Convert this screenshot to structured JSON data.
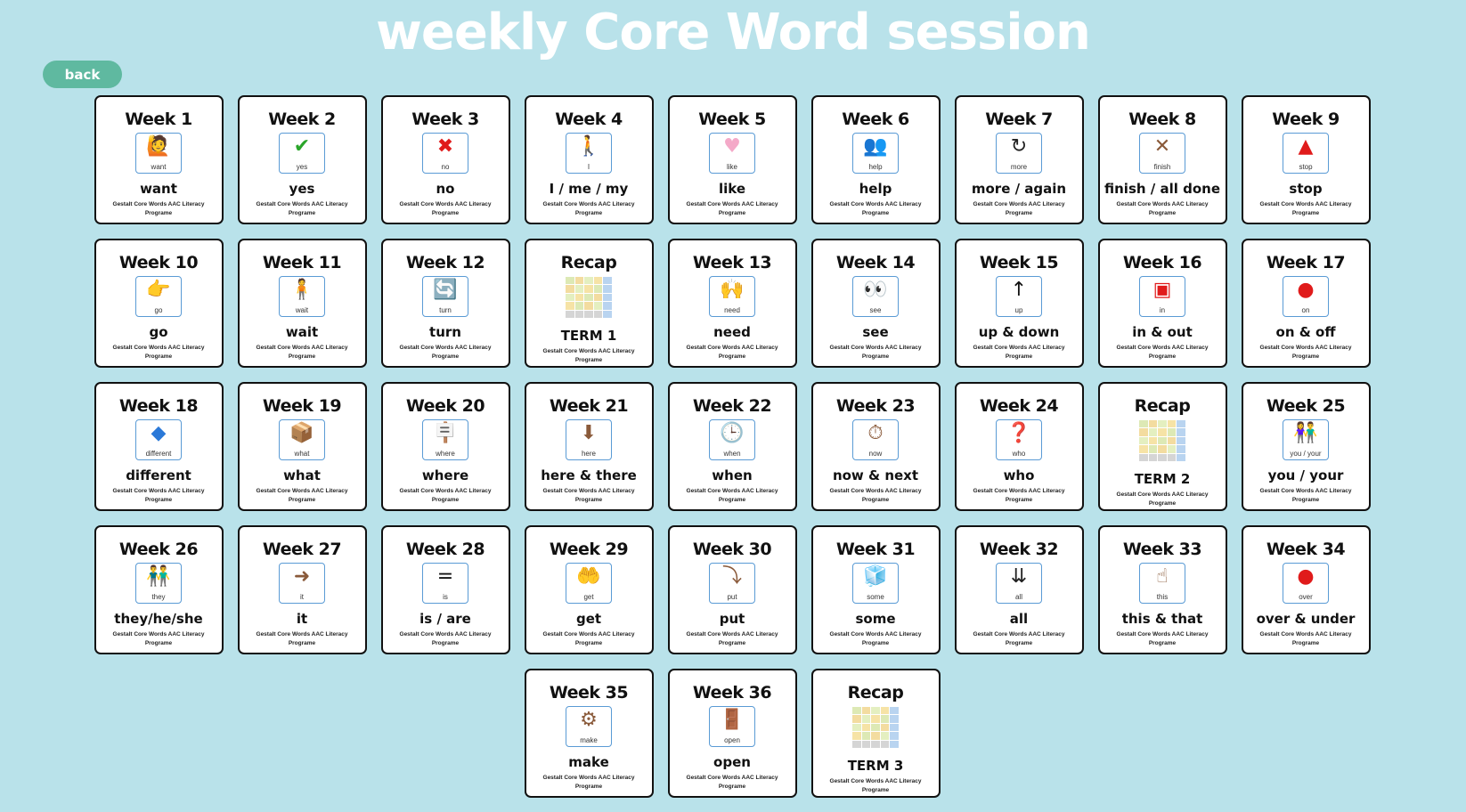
{
  "page": {
    "title": "weekly Core Word session",
    "back_label": "back"
  },
  "colors": {
    "background": "#b9e2ea",
    "back_button": "#5fb9a0",
    "symbol_border": "#5a9bd5"
  },
  "subtitle": "Gestalt Core Words AAC Literacy Programe",
  "rows": [
    [
      {
        "head": "Week 1",
        "symbol": "want",
        "icon": "want-icon",
        "glyph": "🙋",
        "word": "want"
      },
      {
        "head": "Week 2",
        "symbol": "yes",
        "icon": "check-icon",
        "glyph": "✔",
        "word": "yes"
      },
      {
        "head": "Week 3",
        "symbol": "no",
        "icon": "cross-icon",
        "glyph": "✖",
        "word": "no"
      },
      {
        "head": "Week 4",
        "symbol": "I",
        "icon": "person-icon",
        "glyph": "🚶",
        "word": "I / me / my"
      },
      {
        "head": "Week 5",
        "symbol": "like",
        "icon": "heart-icon",
        "glyph": "♥",
        "word": "like"
      },
      {
        "head": "Week 6",
        "symbol": "help",
        "icon": "help-icon",
        "glyph": "👥",
        "word": "help"
      },
      {
        "head": "Week 7",
        "symbol": "more",
        "icon": "more-icon",
        "glyph": "↻",
        "word": "more / again"
      },
      {
        "head": "Week 8",
        "symbol": "finish",
        "icon": "finish-icon",
        "glyph": "✕",
        "word": "finish / all done"
      },
      {
        "head": "Week 9",
        "symbol": "stop",
        "icon": "stop-icon",
        "glyph": "▲",
        "word": "stop"
      }
    ],
    [
      {
        "head": "Week 10",
        "symbol": "go",
        "icon": "pointing-hand-icon",
        "glyph": "👉",
        "word": "go"
      },
      {
        "head": "Week 11",
        "symbol": "wait",
        "icon": "wait-icon",
        "glyph": "🧍",
        "word": "wait"
      },
      {
        "head": "Week 12",
        "symbol": "turn",
        "icon": "turn-icon",
        "glyph": "🔄",
        "word": "turn"
      },
      {
        "head": "Recap",
        "recap": true,
        "word": "TERM 1"
      },
      {
        "head": "Week 13",
        "symbol": "need",
        "icon": "need-icon",
        "glyph": "🙌",
        "word": "need"
      },
      {
        "head": "Week 14",
        "symbol": "see",
        "icon": "eyes-icon",
        "glyph": "👀",
        "word": "see"
      },
      {
        "head": "Week 15",
        "symbol": "up",
        "icon": "arrow-up-icon",
        "glyph": "↑",
        "word": "up & down"
      },
      {
        "head": "Week 16",
        "symbol": "in",
        "icon": "in-icon",
        "glyph": "▣",
        "word": "in & out"
      },
      {
        "head": "Week 17",
        "symbol": "on",
        "icon": "on-icon",
        "glyph": "●",
        "word": "on & off"
      }
    ],
    [
      {
        "head": "Week 18",
        "symbol": "different",
        "icon": "different-icon",
        "glyph": "◆",
        "word": "different"
      },
      {
        "head": "Week 19",
        "symbol": "what",
        "icon": "box-question-icon",
        "glyph": "📦",
        "word": "what"
      },
      {
        "head": "Week 20",
        "symbol": "where",
        "icon": "signpost-question-icon",
        "glyph": "🪧",
        "word": "where"
      },
      {
        "head": "Week 21",
        "symbol": "here",
        "icon": "here-icon",
        "glyph": "⬇",
        "word": "here & there"
      },
      {
        "head": "Week 22",
        "symbol": "when",
        "icon": "clock-question-icon",
        "glyph": "🕒",
        "word": "when"
      },
      {
        "head": "Week 23",
        "symbol": "now",
        "icon": "stopwatch-icon",
        "glyph": "⏱",
        "word": "now & next"
      },
      {
        "head": "Week 24",
        "symbol": "who",
        "icon": "person-question-icon",
        "glyph": "❓",
        "word": "who"
      },
      {
        "head": "Recap",
        "recap": true,
        "word": "TERM 2"
      },
      {
        "head": "Week 25",
        "symbol": "you / your",
        "icon": "two-people-icon",
        "glyph": "👫",
        "word": "you / your"
      }
    ],
    [
      {
        "head": "Week 26",
        "symbol": "they",
        "icon": "they-icon",
        "glyph": "👬",
        "word": "they/he/she"
      },
      {
        "head": "Week 27",
        "symbol": "it",
        "icon": "it-icon",
        "glyph": "➜",
        "word": "it"
      },
      {
        "head": "Week 28",
        "symbol": "is",
        "icon": "equals-icon",
        "glyph": "=",
        "word": "is / are"
      },
      {
        "head": "Week 29",
        "symbol": "get",
        "icon": "get-icon",
        "glyph": "🤲",
        "word": "get"
      },
      {
        "head": "Week 30",
        "symbol": "put",
        "icon": "put-icon",
        "glyph": "⤵",
        "word": "put"
      },
      {
        "head": "Week 31",
        "symbol": "some",
        "icon": "blocks-icon",
        "glyph": "🧊",
        "word": "some"
      },
      {
        "head": "Week 32",
        "symbol": "all",
        "icon": "all-arrows-icon",
        "glyph": "⇊",
        "word": "all"
      },
      {
        "head": "Week 33",
        "symbol": "this",
        "icon": "this-icon",
        "glyph": "☝",
        "word": "this & that"
      },
      {
        "head": "Week 34",
        "symbol": "over",
        "icon": "over-icon",
        "glyph": "●",
        "word": "over & under"
      }
    ],
    [
      {
        "head": "Week 35",
        "symbol": "make",
        "icon": "make-icon",
        "glyph": "⚙",
        "word": "make"
      },
      {
        "head": "Week 36",
        "symbol": "open",
        "icon": "door-icon",
        "glyph": "🚪",
        "word": "open"
      },
      {
        "head": "Recap",
        "recap": true,
        "word": "TERM 3"
      }
    ]
  ]
}
